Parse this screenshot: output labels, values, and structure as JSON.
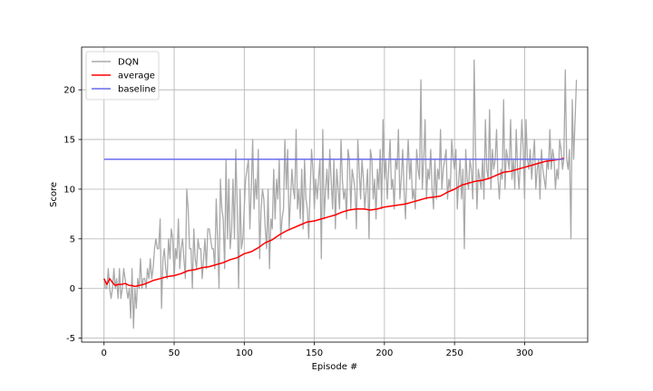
{
  "chart_data": {
    "type": "line",
    "xlabel": "Episode #",
    "ylabel": "Score",
    "xlim": [
      -16,
      345
    ],
    "ylim": [
      -5.4,
      24.3
    ],
    "xticks": [
      0,
      50,
      100,
      150,
      200,
      250,
      300
    ],
    "yticks": [
      -5,
      0,
      5,
      10,
      15,
      20
    ],
    "grid": true,
    "legend": {
      "placement": "top-left"
    },
    "series": [
      {
        "name": "DQN",
        "color": "#a9a9a9",
        "x_start": 0,
        "values": [
          1,
          0,
          0,
          2,
          0,
          -1,
          0,
          2,
          0,
          1,
          -1,
          2,
          -1,
          0,
          2,
          1,
          0,
          -1,
          0,
          -3,
          2,
          -4,
          0,
          -2,
          1,
          0,
          3,
          0,
          1,
          1,
          0,
          2,
          1,
          3,
          1,
          2,
          4,
          5,
          4,
          4,
          7,
          -2,
          3,
          4,
          2,
          1,
          5,
          3,
          6,
          5,
          1,
          4,
          3,
          7,
          2,
          4,
          5,
          3,
          1,
          10,
          8,
          4,
          4,
          0,
          6,
          3,
          2,
          5,
          4,
          4,
          1,
          3,
          5,
          2,
          6,
          6,
          5,
          4,
          4,
          2,
          9,
          5,
          0,
          11,
          8,
          7,
          2,
          13,
          5,
          11,
          4,
          6,
          11,
          5,
          14,
          8,
          0,
          10,
          4,
          5,
          8,
          11,
          12,
          13,
          6,
          10,
          15,
          8,
          11,
          9,
          14,
          3,
          8,
          10,
          9,
          6,
          4,
          10,
          2,
          7,
          6,
          12,
          7,
          11,
          9,
          13,
          5,
          7,
          8,
          15,
          10,
          14,
          6,
          9,
          12,
          10,
          9,
          16,
          8,
          10,
          7,
          12,
          6,
          13,
          9,
          8,
          5,
          10,
          14,
          12,
          8,
          11,
          9,
          11,
          13,
          3,
          16,
          7,
          10,
          12,
          9,
          14,
          11,
          8,
          13,
          6,
          12,
          10,
          8,
          15,
          11,
          9,
          10,
          7,
          14,
          13,
          8,
          12,
          11,
          10,
          6,
          15,
          12,
          9,
          13,
          11,
          8,
          10,
          12,
          5,
          14,
          13,
          9,
          11,
          7,
          12,
          10,
          14,
          8,
          17,
          11,
          13,
          9,
          12,
          15,
          10,
          11,
          8,
          13,
          12,
          16,
          9,
          11,
          14,
          10,
          7,
          12,
          15,
          11,
          13,
          9,
          10,
          8,
          14,
          12,
          11,
          21,
          10,
          13,
          17,
          9,
          12,
          11,
          14,
          10,
          8,
          13,
          9,
          12,
          11,
          16,
          10,
          12,
          13,
          14,
          9,
          11,
          10,
          15,
          13,
          12,
          14,
          8,
          11,
          13,
          9,
          12,
          4,
          14,
          11,
          10,
          13,
          12,
          9,
          23,
          14,
          8,
          12,
          11,
          10,
          13,
          9,
          17,
          12,
          11,
          18,
          10,
          14,
          12,
          13,
          16,
          11,
          9,
          12,
          11,
          19,
          10,
          14,
          13,
          12,
          17,
          11,
          13,
          10,
          16,
          12,
          10,
          13,
          17,
          14,
          9,
          17,
          13,
          12,
          14,
          11,
          13,
          15,
          10,
          12,
          13,
          9,
          14,
          12,
          11,
          10,
          13,
          12,
          16,
          12,
          14,
          13,
          10,
          12,
          11,
          15,
          14,
          12,
          13,
          22,
          13,
          12,
          14,
          5,
          19,
          13,
          17,
          21
        ]
      },
      {
        "name": "average",
        "color": "#ff0000",
        "x": [
          0,
          2,
          4,
          6,
          8,
          10,
          12,
          15,
          18,
          20,
          22,
          25,
          28,
          30,
          35,
          40,
          45,
          50,
          55,
          60,
          65,
          70,
          75,
          80,
          85,
          90,
          95,
          100,
          105,
          110,
          115,
          120,
          125,
          130,
          135,
          140,
          145,
          150,
          155,
          160,
          165,
          170,
          175,
          180,
          185,
          190,
          195,
          200,
          205,
          210,
          215,
          220,
          225,
          230,
          235,
          240,
          245,
          250,
          255,
          260,
          265,
          270,
          275,
          280,
          285,
          290,
          295,
          300,
          305,
          310,
          315,
          320,
          325,
          328
        ],
        "y": [
          1.0,
          0.4,
          1.0,
          0.6,
          0.3,
          0.4,
          0.4,
          0.5,
          0.3,
          0.3,
          0.2,
          0.3,
          0.4,
          0.5,
          0.8,
          1.0,
          1.2,
          1.3,
          1.5,
          1.8,
          1.9,
          2.1,
          2.2,
          2.4,
          2.6,
          2.9,
          3.1,
          3.5,
          3.7,
          4.1,
          4.6,
          4.9,
          5.4,
          5.8,
          6.1,
          6.4,
          6.7,
          6.8,
          7.0,
          7.2,
          7.4,
          7.7,
          7.9,
          8.0,
          8.0,
          7.9,
          8.0,
          8.2,
          8.3,
          8.4,
          8.5,
          8.7,
          8.9,
          9.1,
          9.2,
          9.3,
          9.7,
          10.0,
          10.4,
          10.6,
          10.8,
          10.9,
          11.1,
          11.4,
          11.7,
          11.8,
          12.0,
          12.2,
          12.4,
          12.6,
          12.8,
          12.9,
          13.0,
          13.1
        ]
      },
      {
        "name": "baseline",
        "color": "#6b6bf0",
        "x": [
          0,
          328
        ],
        "y": [
          13,
          13
        ]
      }
    ]
  }
}
